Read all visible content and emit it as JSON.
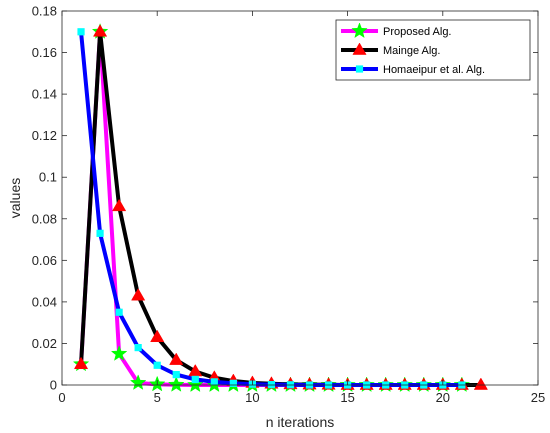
{
  "chart_data": {
    "type": "line",
    "title": "",
    "xlabel": "n iterations",
    "ylabel": "values",
    "xlim": [
      0,
      25
    ],
    "ylim": [
      0,
      0.18
    ],
    "xticks": [
      0,
      5,
      10,
      15,
      20,
      25
    ],
    "yticks": [
      0,
      0.02,
      0.04,
      0.06,
      0.08,
      0.1,
      0.12,
      0.14,
      0.16,
      0.18
    ],
    "xtick_labels": [
      "0",
      "5",
      "10",
      "15",
      "20",
      "25"
    ],
    "ytick_labels": [
      "0",
      "0.02",
      "0.04",
      "0.06",
      "0.08",
      "0.1",
      "0.12",
      "0.14",
      "0.16",
      "0.18"
    ],
    "grid": false,
    "legend_position": "top-right",
    "series": [
      {
        "name": "Proposed Alg.",
        "line_color": "#ff00ff",
        "marker": "star",
        "marker_color": "#00ff00",
        "x": [
          1,
          2,
          3,
          4,
          5,
          6,
          7,
          8,
          9,
          10,
          11,
          12,
          13,
          14,
          15,
          16,
          17,
          18,
          19,
          20,
          21
        ],
        "y": [
          0.01,
          0.17,
          0.015,
          0.001,
          0.0003,
          0.0001,
          0,
          0,
          0,
          0,
          0,
          0,
          0,
          0,
          0,
          0,
          0,
          0,
          0,
          0,
          0
        ]
      },
      {
        "name": "Mainge Alg.",
        "line_color": "#000000",
        "marker": "triangle",
        "marker_color": "#ff0000",
        "x": [
          1,
          2,
          3,
          4,
          5,
          6,
          7,
          8,
          9,
          10,
          11,
          12,
          13,
          14,
          15,
          16,
          17,
          18,
          19,
          20,
          21,
          22
        ],
        "y": [
          0.01,
          0.17,
          0.086,
          0.043,
          0.023,
          0.012,
          0.0065,
          0.0035,
          0.0019,
          0.001,
          0.0006,
          0.0003,
          0.0002,
          0.0001,
          0,
          0,
          0,
          0,
          0,
          0,
          0,
          0
        ]
      },
      {
        "name": "Homaeipur et al. Alg.",
        "line_color": "#0000ff",
        "marker": "square",
        "marker_color": "#00ffff",
        "x": [
          1,
          2,
          3,
          4,
          5,
          6,
          7,
          8,
          9,
          10,
          11,
          12,
          13,
          14,
          15,
          16,
          17,
          18,
          19,
          20,
          21
        ],
        "y": [
          0.17,
          0.073,
          0.035,
          0.018,
          0.0095,
          0.005,
          0.0027,
          0.0015,
          0.0008,
          0.0004,
          0.0002,
          0.0001,
          0,
          0,
          0,
          0,
          0,
          0,
          0,
          0,
          0
        ]
      }
    ]
  }
}
